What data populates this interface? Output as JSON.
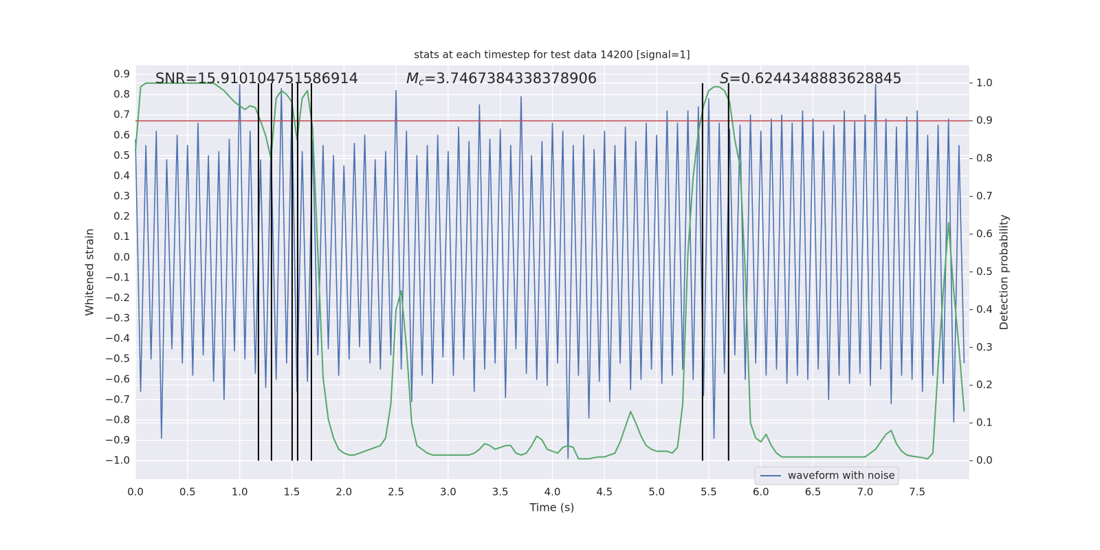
{
  "chart_data": {
    "type": "line",
    "title": "stats at each timestep for test data 14200 [signal=1]",
    "x_label": "Time (s)",
    "y_label": "Whitened strain",
    "y2_label": "Detection probability",
    "xlim": [
      0,
      8.0
    ],
    "ylim": [
      -1.091,
      0.944
    ],
    "y2lim": [
      -0.049,
      1.047
    ],
    "grid": true,
    "legend_position": "lower right",
    "xticks": [
      {
        "value": 0,
        "label": "0.0"
      },
      {
        "value": 0.5,
        "label": "0.5"
      },
      {
        "value": 1,
        "label": "1.0"
      },
      {
        "value": 1.5,
        "label": "1.5"
      },
      {
        "value": 2,
        "label": "2.0"
      },
      {
        "value": 2.5,
        "label": "2.5"
      },
      {
        "value": 3,
        "label": "3.0"
      },
      {
        "value": 3.5,
        "label": "3.5"
      },
      {
        "value": 4,
        "label": "4.0"
      },
      {
        "value": 4.5,
        "label": "4.5"
      },
      {
        "value": 5,
        "label": "5.0"
      },
      {
        "value": 5.5,
        "label": "5.5"
      },
      {
        "value": 6,
        "label": "6.0"
      },
      {
        "value": 6.5,
        "label": "6.5"
      },
      {
        "value": 7,
        "label": "7.0"
      },
      {
        "value": 7.5,
        "label": "7.5"
      }
    ],
    "yticks": [
      {
        "value": -1.0,
        "label": "−1.0"
      },
      {
        "value": -0.9,
        "label": "−0.9"
      },
      {
        "value": -0.8,
        "label": "−0.8"
      },
      {
        "value": -0.7,
        "label": "−0.7"
      },
      {
        "value": -0.6,
        "label": "−0.6"
      },
      {
        "value": -0.5,
        "label": "−0.5"
      },
      {
        "value": -0.4,
        "label": "−0.4"
      },
      {
        "value": -0.3,
        "label": "−0.3"
      },
      {
        "value": -0.2,
        "label": "−0.2"
      },
      {
        "value": -0.1,
        "label": "−0.1"
      },
      {
        "value": 0,
        "label": "0.0"
      },
      {
        "value": 0.1,
        "label": "0.1"
      },
      {
        "value": 0.2,
        "label": "0.2"
      },
      {
        "value": 0.3,
        "label": "0.3"
      },
      {
        "value": 0.4,
        "label": "0.4"
      },
      {
        "value": 0.5,
        "label": "0.5"
      },
      {
        "value": 0.6,
        "label": "0.6"
      },
      {
        "value": 0.7,
        "label": "0.7"
      },
      {
        "value": 0.8,
        "label": "0.8"
      },
      {
        "value": 0.9,
        "label": "0.9"
      }
    ],
    "y2ticks": [
      {
        "value": 0,
        "label": "0.0"
      },
      {
        "value": 0.1,
        "label": "0.1"
      },
      {
        "value": 0.2,
        "label": "0.2"
      },
      {
        "value": 0.3,
        "label": "0.3"
      },
      {
        "value": 0.4,
        "label": "0.4"
      },
      {
        "value": 0.5,
        "label": "0.5"
      },
      {
        "value": 0.6,
        "label": "0.6"
      },
      {
        "value": 0.7,
        "label": "0.7"
      },
      {
        "value": 0.8,
        "label": "0.8"
      },
      {
        "value": 0.9,
        "label": "0.9"
      },
      {
        "value": 1,
        "label": "1.0"
      }
    ],
    "annotations": [
      {
        "text": "SNR=15.910104751586914"
      },
      {
        "symbol": "M",
        "subscript": "c",
        "text": "=3.7467384338378906"
      },
      {
        "symbol": "S",
        "text": "=0.6244348883628845"
      }
    ],
    "threshold": {
      "y": 0.9,
      "axis": "y2",
      "color": "#c44e52"
    },
    "vlines": {
      "x": [
        1.18,
        1.305,
        1.503,
        1.556,
        1.688,
        5.44,
        5.69
      ],
      "ymin": 0,
      "ymax": 1,
      "axis": "y2",
      "color": "#000000"
    },
    "x": [
      0,
      0.05,
      0.1,
      0.15,
      0.2,
      0.25,
      0.3,
      0.35,
      0.4,
      0.45,
      0.5,
      0.55,
      0.6,
      0.65,
      0.7,
      0.75,
      0.8,
      0.85,
      0.9,
      0.95,
      1,
      1.05,
      1.1,
      1.15,
      1.2,
      1.25,
      1.3,
      1.35,
      1.4,
      1.45,
      1.5,
      1.55,
      1.6,
      1.65,
      1.7,
      1.75,
      1.8,
      1.85,
      1.9,
      1.95,
      2,
      2.05,
      2.1,
      2.15,
      2.2,
      2.25,
      2.3,
      2.35,
      2.4,
      2.45,
      2.5,
      2.55,
      2.6,
      2.65,
      2.7,
      2.75,
      2.8,
      2.85,
      2.9,
      2.95,
      3,
      3.05,
      3.1,
      3.15,
      3.2,
      3.25,
      3.3,
      3.35,
      3.4,
      3.45,
      3.5,
      3.55,
      3.6,
      3.65,
      3.7,
      3.75,
      3.8,
      3.85,
      3.9,
      3.95,
      4,
      4.05,
      4.1,
      4.15,
      4.2,
      4.25,
      4.3,
      4.35,
      4.4,
      4.45,
      4.5,
      4.55,
      4.6,
      4.65,
      4.7,
      4.75,
      4.8,
      4.85,
      4.9,
      4.95,
      5,
      5.05,
      5.1,
      5.15,
      5.2,
      5.25,
      5.3,
      5.35,
      5.4,
      5.45,
      5.5,
      5.55,
      5.6,
      5.65,
      5.7,
      5.75,
      5.8,
      5.85,
      5.9,
      5.95,
      6,
      6.05,
      6.1,
      6.15,
      6.2,
      6.25,
      6.3,
      6.35,
      6.4,
      6.45,
      6.5,
      6.55,
      6.6,
      6.65,
      6.7,
      6.75,
      6.8,
      6.85,
      6.9,
      6.95,
      7,
      7.05,
      7.1,
      7.15,
      7.2,
      7.25,
      7.3,
      7.35,
      7.4,
      7.45,
      7.5,
      7.55,
      7.6,
      7.65,
      7.7,
      7.75,
      7.8,
      7.85,
      7.9,
      7.95
    ],
    "series": [
      {
        "name": "waveform with noise",
        "color": "#4c72b0",
        "values": [
          0.58,
          -0.66,
          0.55,
          -0.5,
          0.62,
          -0.89,
          0.48,
          -0.45,
          0.6,
          -0.52,
          0.55,
          -0.58,
          0.66,
          -0.48,
          0.5,
          -0.61,
          0.52,
          -0.7,
          0.58,
          -0.46,
          0.85,
          -0.5,
          0.62,
          -0.57,
          0.48,
          -0.64,
          0.55,
          -0.6,
          0.83,
          -0.52,
          0.75,
          -0.66,
          0.52,
          -0.61,
          0.58,
          -0.48,
          0.55,
          -0.45,
          0.5,
          -0.58,
          0.45,
          -0.5,
          0.56,
          -0.44,
          0.6,
          -0.52,
          0.48,
          -0.55,
          0.52,
          -0.48,
          0.82,
          -0.55,
          0.62,
          -0.71,
          0.5,
          -0.58,
          0.55,
          -0.62,
          0.6,
          -0.49,
          0.52,
          -0.58,
          0.64,
          -0.5,
          0.57,
          -0.66,
          0.75,
          -0.55,
          0.58,
          -0.52,
          0.63,
          -0.69,
          0.55,
          -0.45,
          0.79,
          -0.57,
          0.5,
          -0.6,
          0.57,
          -0.63,
          0.66,
          -0.52,
          0.62,
          -0.99,
          0.55,
          -0.58,
          0.6,
          -0.79,
          0.53,
          -0.61,
          0.62,
          -0.71,
          0.55,
          -0.52,
          0.64,
          -0.65,
          0.57,
          -0.6,
          0.66,
          -0.55,
          0.6,
          -0.62,
          0.72,
          -0.58,
          0.66,
          -0.55,
          0.72,
          -0.6,
          0.74,
          -0.68,
          0.78,
          -0.89,
          0.66,
          -0.57,
          0.63,
          -0.48,
          0.65,
          -0.6,
          0.7,
          -0.52,
          0.62,
          -0.58,
          0.68,
          -0.55,
          0.7,
          -0.62,
          0.66,
          -0.58,
          0.72,
          -0.6,
          0.68,
          -0.55,
          0.62,
          -0.7,
          0.65,
          -0.58,
          0.72,
          -0.62,
          0.67,
          -0.57,
          0.7,
          -0.63,
          0.85,
          -0.55,
          0.68,
          -0.72,
          0.64,
          -0.58,
          0.69,
          -0.6,
          0.72,
          -0.66,
          0.6,
          -0.58,
          0.65,
          -0.62,
          0.68,
          -0.81,
          0.55,
          -0.52
        ]
      },
      {
        "color": "#55a868",
        "axis": "y2",
        "values": [
          0.82,
          0.99,
          1.0,
          1.0,
          1.0,
          1.0,
          1.0,
          1.0,
          1.0,
          1.0,
          1.0,
          1.0,
          1.0,
          1.0,
          1.0,
          1.0,
          0.99,
          0.98,
          0.965,
          0.95,
          0.94,
          0.93,
          0.94,
          0.935,
          0.9,
          0.86,
          0.8,
          0.96,
          0.98,
          0.97,
          0.95,
          0.85,
          0.96,
          0.98,
          0.88,
          0.55,
          0.22,
          0.11,
          0.06,
          0.03,
          0.02,
          0.015,
          0.015,
          0.02,
          0.025,
          0.03,
          0.035,
          0.04,
          0.06,
          0.15,
          0.4,
          0.45,
          0.3,
          0.1,
          0.04,
          0.03,
          0.02,
          0.015,
          0.015,
          0.015,
          0.015,
          0.015,
          0.015,
          0.015,
          0.015,
          0.02,
          0.03,
          0.045,
          0.04,
          0.03,
          0.035,
          0.04,
          0.04,
          0.02,
          0.015,
          0.02,
          0.04,
          0.065,
          0.055,
          0.03,
          0.025,
          0.02,
          0.035,
          0.04,
          0.035,
          0.005,
          0.005,
          0.005,
          0.008,
          0.01,
          0.01,
          0.015,
          0.02,
          0.05,
          0.09,
          0.13,
          0.1,
          0.065,
          0.04,
          0.03,
          0.025,
          0.025,
          0.025,
          0.02,
          0.035,
          0.15,
          0.55,
          0.75,
          0.87,
          0.94,
          0.98,
          0.99,
          0.99,
          0.98,
          0.95,
          0.85,
          0.78,
          0.5,
          0.1,
          0.06,
          0.05,
          0.07,
          0.04,
          0.02,
          0.01,
          0.01,
          0.01,
          0.01,
          0.01,
          0.01,
          0.01,
          0.01,
          0.01,
          0.01,
          0.01,
          0.01,
          0.01,
          0.01,
          0.01,
          0.01,
          0.01,
          0.02,
          0.03,
          0.05,
          0.07,
          0.08,
          0.045,
          0.025,
          0.015,
          0.012,
          0.01,
          0.008,
          0.005,
          0.02,
          0.25,
          0.45,
          0.63,
          0.45,
          0.3,
          0.13
        ]
      }
    ]
  }
}
